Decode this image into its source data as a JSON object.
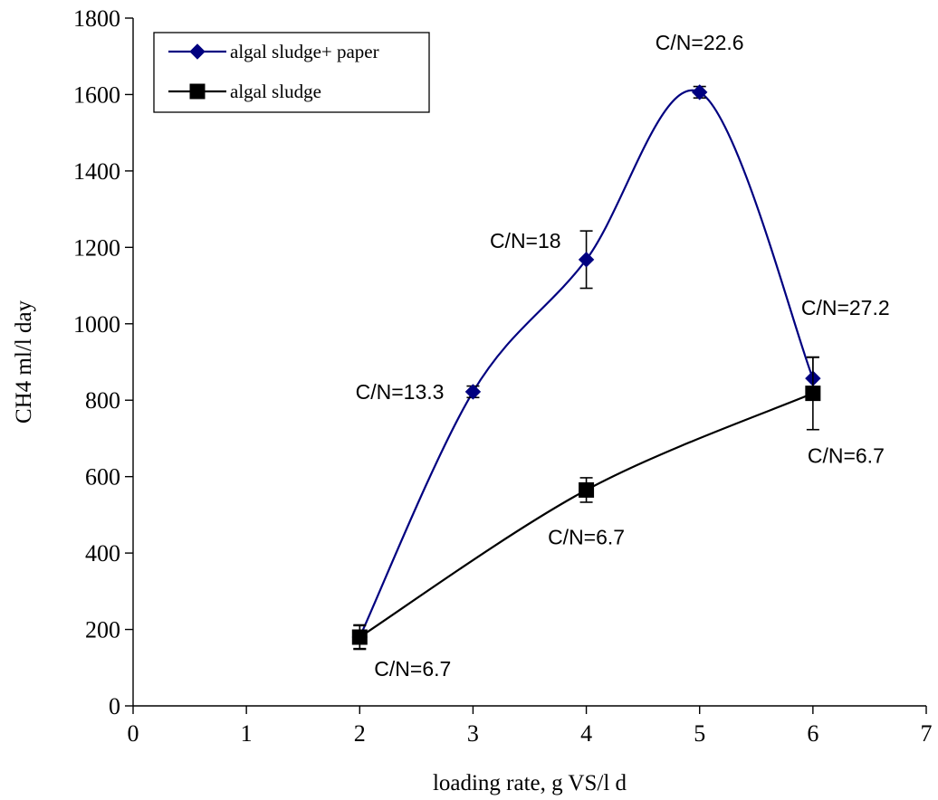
{
  "chart_data": {
    "type": "line",
    "title": "",
    "xlabel": "loading rate, g VS/l d",
    "ylabel": "CH4 ml/l day",
    "xlim": [
      0,
      7
    ],
    "ylim": [
      0,
      1800
    ],
    "x_ticks": [
      "0",
      "1",
      "2",
      "3",
      "4",
      "5",
      "6",
      "7"
    ],
    "y_ticks": [
      "0",
      "200",
      "400",
      "600",
      "800",
      "1000",
      "1200",
      "1400",
      "1600",
      "1800"
    ],
    "grid": false,
    "smooth": true,
    "legend_position": "top-left",
    "series": [
      {
        "name": "algal sludge+ paper",
        "color": "#000080",
        "marker": "diamond",
        "x": [
          2,
          3,
          4,
          5,
          6
        ],
        "y": [
          180,
          822,
          1168,
          1606,
          857
        ],
        "error": [
          30,
          15,
          75,
          15,
          55
        ]
      },
      {
        "name": "algal sludge",
        "color": "#000000",
        "marker": "square",
        "x": [
          2,
          4,
          6
        ],
        "y": [
          180,
          565,
          818
        ],
        "error": [
          32,
          32,
          95
        ]
      }
    ],
    "annotations": [
      {
        "text": "C/N=6.7",
        "x": 2,
        "y": 180,
        "placement": "below-right"
      },
      {
        "text": "C/N=13.3",
        "x": 3,
        "y": 822,
        "placement": "left"
      },
      {
        "text": "C/N=18",
        "x": 4,
        "y": 1168,
        "placement": "upper-left"
      },
      {
        "text": "C/N=22.6",
        "x": 5,
        "y": 1606,
        "placement": "above"
      },
      {
        "text": "C/N=27.2",
        "x": 6,
        "y": 857,
        "placement": "above-right"
      },
      {
        "text": "C/N=6.7",
        "x": 4,
        "y": 565,
        "placement": "below"
      },
      {
        "text": "C/N=6.7",
        "x": 6,
        "y": 818,
        "placement": "below-right"
      }
    ]
  }
}
